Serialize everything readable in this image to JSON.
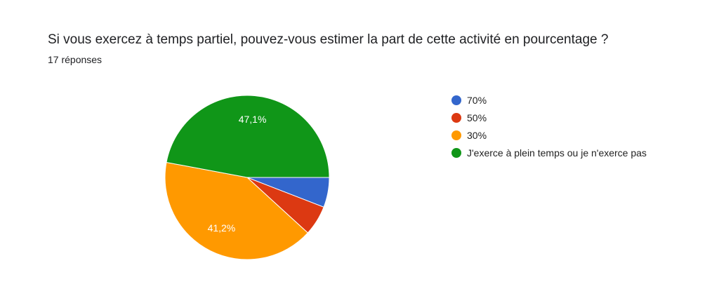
{
  "chart_data": {
    "type": "pie",
    "title": "Si vous exercez à temps partiel, pouvez-vous estimer la part de cette activité en pourcentage ?",
    "subtitle": "17 réponses",
    "categories": [
      "70%",
      "50%",
      "30%",
      "J'exerce à plein temps ou je n'exerce pas"
    ],
    "values": [
      5.9,
      5.9,
      41.2,
      47.1
    ],
    "value_labels": [
      null,
      null,
      "41,2%",
      "47,1%"
    ],
    "colors": [
      "#3366cc",
      "#dc3912",
      "#ff9900",
      "#109618"
    ]
  }
}
